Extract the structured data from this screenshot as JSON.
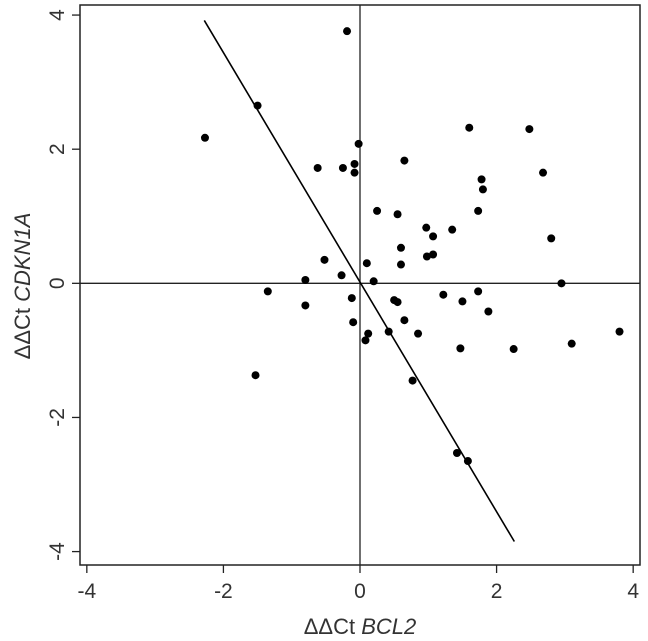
{
  "chart_data": {
    "type": "scatter",
    "title": "",
    "xlabel": {
      "prefix": "ΔΔCt",
      "gene": "BCL2"
    },
    "ylabel": {
      "prefix": "ΔΔCt",
      "gene": "CDKN1A"
    },
    "xlim": [
      -4.1,
      4.1
    ],
    "ylim": [
      -4.2,
      4.15
    ],
    "xticks": [
      -4,
      -2,
      0,
      2,
      4
    ],
    "yticks": [
      -4,
      -2,
      0,
      2,
      4
    ],
    "xtick_labels": [
      "-4",
      "-2",
      "0",
      "2",
      "4"
    ],
    "ytick_labels": [
      "-4",
      "-2",
      "0",
      "2",
      "4"
    ],
    "grid": false,
    "reference_lines": {
      "x": 0,
      "y": 0
    },
    "fit_line": {
      "x": [
        -2.28,
        2.26
      ],
      "y": [
        3.92,
        -3.85
      ]
    },
    "points": [
      {
        "x": -2.27,
        "y": 2.17
      },
      {
        "x": -1.5,
        "y": 2.65
      },
      {
        "x": -0.19,
        "y": 3.76
      },
      {
        "x": -0.02,
        "y": 2.08
      },
      {
        "x": -0.62,
        "y": 1.72
      },
      {
        "x": -0.25,
        "y": 1.72
      },
      {
        "x": -0.08,
        "y": 1.78
      },
      {
        "x": -0.08,
        "y": 1.65
      },
      {
        "x": 0.65,
        "y": 1.83
      },
      {
        "x": 1.6,
        "y": 2.32
      },
      {
        "x": 2.48,
        "y": 2.3
      },
      {
        "x": 2.68,
        "y": 1.65
      },
      {
        "x": 1.78,
        "y": 1.55
      },
      {
        "x": 1.8,
        "y": 1.4
      },
      {
        "x": 1.73,
        "y": 1.08
      },
      {
        "x": 0.25,
        "y": 1.08
      },
      {
        "x": 0.55,
        "y": 1.03
      },
      {
        "x": 0.97,
        "y": 0.83
      },
      {
        "x": 1.35,
        "y": 0.8
      },
      {
        "x": 1.07,
        "y": 0.7
      },
      {
        "x": 2.8,
        "y": 0.67
      },
      {
        "x": 0.6,
        "y": 0.53
      },
      {
        "x": 1.07,
        "y": 0.43
      },
      {
        "x": 0.98,
        "y": 0.4
      },
      {
        "x": -0.52,
        "y": 0.35
      },
      {
        "x": 0.1,
        "y": 0.3
      },
      {
        "x": 0.6,
        "y": 0.28
      },
      {
        "x": -0.27,
        "y": 0.12
      },
      {
        "x": -0.8,
        "y": 0.05
      },
      {
        "x": 0.2,
        "y": 0.03
      },
      {
        "x": 2.95,
        "y": 0.0
      },
      {
        "x": -1.35,
        "y": -0.12
      },
      {
        "x": 1.73,
        "y": -0.12
      },
      {
        "x": 1.22,
        "y": -0.17
      },
      {
        "x": -0.12,
        "y": -0.22
      },
      {
        "x": 0.5,
        "y": -0.25
      },
      {
        "x": 0.55,
        "y": -0.28
      },
      {
        "x": 1.5,
        "y": -0.27
      },
      {
        "x": -0.8,
        "y": -0.33
      },
      {
        "x": 1.88,
        "y": -0.42
      },
      {
        "x": 0.65,
        "y": -0.55
      },
      {
        "x": -0.1,
        "y": -0.58
      },
      {
        "x": 0.42,
        "y": -0.72
      },
      {
        "x": 0.85,
        "y": -0.75
      },
      {
        "x": 0.12,
        "y": -0.75
      },
      {
        "x": 0.08,
        "y": -0.85
      },
      {
        "x": 3.8,
        "y": -0.72
      },
      {
        "x": 3.1,
        "y": -0.9
      },
      {
        "x": 1.47,
        "y": -0.97
      },
      {
        "x": 2.25,
        "y": -0.98
      },
      {
        "x": -1.53,
        "y": -1.37
      },
      {
        "x": 0.77,
        "y": -1.45
      },
      {
        "x": 1.42,
        "y": -2.53
      },
      {
        "x": 1.58,
        "y": -2.65
      }
    ]
  }
}
